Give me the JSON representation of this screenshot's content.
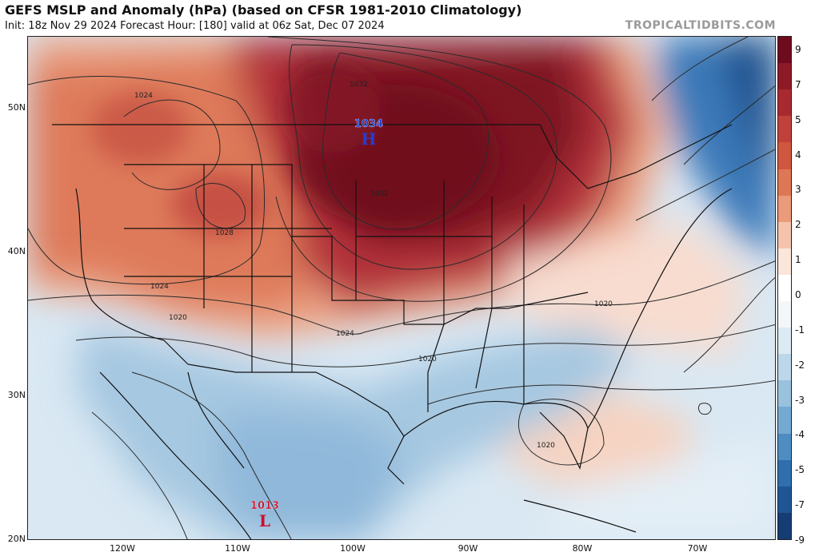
{
  "header": {
    "title": "GEFS MSLP and Anomaly (hPa) (based on CFSR 1981-2010 Climatology)",
    "subtitle": "Init: 18z Nov 29 2024   Forecast Hour: [180]   valid at 06z Sat, Dec 07 2024",
    "brand": "TROPICALTIDBITS.COM"
  },
  "map": {
    "projection": "lat-lon",
    "lon_range": [
      -127.5,
      -62.5
    ],
    "lat_range": [
      20,
      55
    ],
    "lat_ticks": [
      "50N",
      "40N",
      "30N",
      "20N"
    ],
    "lon_ticks": [
      "120W",
      "110W",
      "100W",
      "90W",
      "80W",
      "70W"
    ],
    "pressure_centers": [
      {
        "type": "H",
        "value": "1034",
        "color": "#1f3fd6"
      },
      {
        "type": "L",
        "value": "1013",
        "color": "#c8102e"
      }
    ],
    "isobar_labels": [
      "1032",
      "1024",
      "1032",
      "1028",
      "1024",
      "1020",
      "1024",
      "1020",
      "1020",
      "1020"
    ]
  },
  "colorbar": {
    "labels": [
      "9",
      "7",
      "5",
      "4",
      "3",
      "2",
      "1",
      "0",
      "-1",
      "-2",
      "-3",
      "-4",
      "-5",
      "-7",
      "-9"
    ],
    "colors": [
      "#6e0b1c",
      "#8e1a28",
      "#a82a30",
      "#c0413a",
      "#d0573f",
      "#de7756",
      "#eb9a7a",
      "#f5c3ad",
      "#fbe6db",
      "#ffffff",
      "#f4f7fa",
      "#dceaf4",
      "#bcd7ea",
      "#99c2df",
      "#74a9d2",
      "#4e8dc2",
      "#2f6fad",
      "#1f5594",
      "#153d73"
    ]
  }
}
